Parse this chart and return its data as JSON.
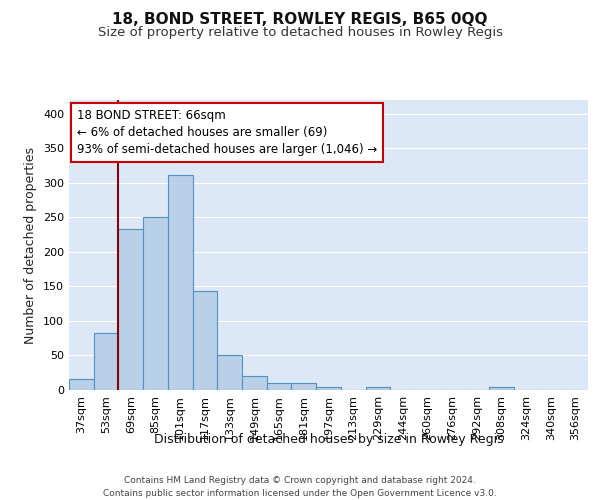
{
  "title": "18, BOND STREET, ROWLEY REGIS, B65 0QQ",
  "subtitle": "Size of property relative to detached houses in Rowley Regis",
  "xlabel": "Distribution of detached houses by size in Rowley Regis",
  "ylabel": "Number of detached properties",
  "footer_line1": "Contains HM Land Registry data © Crown copyright and database right 2024.",
  "footer_line2": "Contains public sector information licensed under the Open Government Licence v3.0.",
  "bin_labels": [
    "37sqm",
    "53sqm",
    "69sqm",
    "85sqm",
    "101sqm",
    "117sqm",
    "133sqm",
    "149sqm",
    "165sqm",
    "181sqm",
    "197sqm",
    "213sqm",
    "229sqm",
    "244sqm",
    "260sqm",
    "276sqm",
    "292sqm",
    "308sqm",
    "324sqm",
    "340sqm",
    "356sqm"
  ],
  "bar_heights": [
    16,
    83,
    233,
    250,
    311,
    143,
    50,
    20,
    10,
    10,
    5,
    0,
    5,
    0,
    0,
    0,
    0,
    5,
    0,
    0,
    0
  ],
  "bar_color": "#b8d0e8",
  "bar_edge_color": "#5590c0",
  "annotation_line1": "18 BOND STREET: 66sqm",
  "annotation_line2": "← 6% of detached houses are smaller (69)",
  "annotation_line3": "93% of semi-detached houses are larger (1,046) →",
  "annotation_box_color": "#ffffff",
  "annotation_box_edge_color": "#cc0000",
  "vline_x": 1.5,
  "vline_color": "#8b0000",
  "ylim": [
    0,
    420
  ],
  "yticks": [
    0,
    50,
    100,
    150,
    200,
    250,
    300,
    350,
    400
  ],
  "bg_color": "#dce8f5",
  "grid_color": "#ffffff",
  "title_fontsize": 11,
  "subtitle_fontsize": 9.5,
  "xlabel_fontsize": 9,
  "ylabel_fontsize": 9,
  "tick_fontsize": 8,
  "annotation_fontsize": 8.5,
  "footer_fontsize": 6.5
}
